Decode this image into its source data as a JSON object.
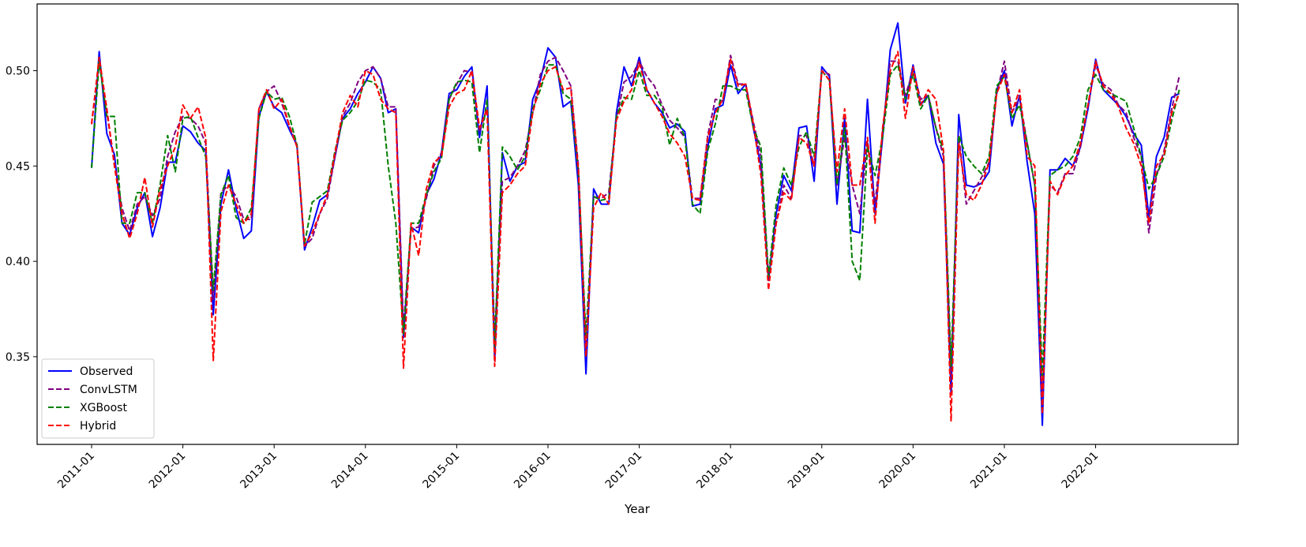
{
  "chart_data": {
    "type": "line",
    "title": "",
    "xlabel": "Year",
    "ylabel": "",
    "ylim": [
      0.304,
      0.535
    ],
    "yticks": [
      "0.35",
      "0.40",
      "0.45",
      "0.50"
    ],
    "ytick_values": [
      0.35,
      0.4,
      0.45,
      0.5
    ],
    "xticks": [
      "2011-01",
      "2012-01",
      "2013-01",
      "2014-01",
      "2015-01",
      "2016-01",
      "2017-01",
      "2018-01",
      "2019-01",
      "2020-01",
      "2021-01",
      "2022-01"
    ],
    "x_start": "2011-01",
    "x_end": "2022-12",
    "x_frequency": "monthly",
    "grid": false,
    "legend_placement": "lower-left",
    "series": [
      {
        "name": "Observed",
        "color": "#0000ff",
        "style": "solid",
        "values": [
          0.449,
          0.51,
          0.467,
          0.456,
          0.42,
          0.414,
          0.428,
          0.436,
          0.413,
          0.428,
          0.452,
          0.452,
          0.471,
          0.468,
          0.462,
          0.458,
          0.372,
          0.43,
          0.448,
          0.428,
          0.412,
          0.416,
          0.476,
          0.489,
          0.481,
          0.478,
          0.469,
          0.461,
          0.406,
          0.418,
          0.432,
          0.435,
          0.455,
          0.475,
          0.48,
          0.488,
          0.494,
          0.502,
          0.496,
          0.478,
          0.48,
          0.36,
          0.418,
          0.415,
          0.435,
          0.443,
          0.457,
          0.488,
          0.49,
          0.497,
          0.502,
          0.465,
          0.492,
          0.348,
          0.457,
          0.442,
          0.45,
          0.452,
          0.485,
          0.495,
          0.512,
          0.507,
          0.481,
          0.484,
          0.44,
          0.341,
          0.438,
          0.43,
          0.43,
          0.478,
          0.502,
          0.492,
          0.507,
          0.49,
          0.483,
          0.478,
          0.47,
          0.472,
          0.468,
          0.429,
          0.43,
          0.46,
          0.48,
          0.482,
          0.503,
          0.488,
          0.493,
          0.47,
          0.45,
          0.39,
          0.425,
          0.445,
          0.437,
          0.47,
          0.471,
          0.442,
          0.502,
          0.497,
          0.43,
          0.475,
          0.416,
          0.415,
          0.485,
          0.425,
          0.465,
          0.511,
          0.525,
          0.483,
          0.503,
          0.482,
          0.487,
          0.462,
          0.451,
          0.33,
          0.477,
          0.44,
          0.439,
          0.441,
          0.447,
          0.49,
          0.5,
          0.471,
          0.487,
          0.452,
          0.425,
          0.314,
          0.448,
          0.448,
          0.454,
          0.45,
          0.46,
          0.48,
          0.506,
          0.49,
          0.486,
          0.482,
          0.476,
          0.467,
          0.461,
          0.423,
          0.455,
          0.465,
          0.486,
          0.488
        ]
      },
      {
        "name": "ConvLSTM",
        "color": "#800080",
        "style": "dashed",
        "values": [
          0.472,
          0.505,
          0.478,
          0.452,
          0.428,
          0.416,
          0.43,
          0.434,
          0.424,
          0.433,
          0.455,
          0.468,
          0.476,
          0.475,
          0.471,
          0.462,
          0.38,
          0.436,
          0.44,
          0.434,
          0.422,
          0.422,
          0.48,
          0.489,
          0.492,
          0.483,
          0.471,
          0.461,
          0.408,
          0.412,
          0.425,
          0.433,
          0.455,
          0.476,
          0.483,
          0.494,
          0.5,
          0.502,
          0.496,
          0.481,
          0.481,
          0.365,
          0.417,
          0.418,
          0.433,
          0.45,
          0.457,
          0.485,
          0.493,
          0.5,
          0.499,
          0.468,
          0.48,
          0.36,
          0.442,
          0.444,
          0.45,
          0.458,
          0.478,
          0.498,
          0.505,
          0.507,
          0.5,
          0.492,
          0.45,
          0.355,
          0.434,
          0.433,
          0.436,
          0.475,
          0.494,
          0.497,
          0.505,
          0.497,
          0.492,
          0.482,
          0.474,
          0.47,
          0.465,
          0.433,
          0.433,
          0.466,
          0.485,
          0.484,
          0.508,
          0.493,
          0.493,
          0.473,
          0.455,
          0.392,
          0.42,
          0.44,
          0.433,
          0.466,
          0.466,
          0.45,
          0.5,
          0.498,
          0.44,
          0.465,
          0.44,
          0.425,
          0.463,
          0.43,
          0.468,
          0.505,
          0.505,
          0.487,
          0.5,
          0.485,
          0.487,
          0.47,
          0.455,
          0.34,
          0.466,
          0.43,
          0.437,
          0.444,
          0.452,
          0.488,
          0.505,
          0.478,
          0.486,
          0.462,
          0.44,
          0.33,
          0.44,
          0.436,
          0.446,
          0.446,
          0.46,
          0.482,
          0.503,
          0.493,
          0.49,
          0.482,
          0.478,
          0.465,
          0.455,
          0.415,
          0.445,
          0.458,
          0.48,
          0.497
        ]
      },
      {
        "name": "XGBoost",
        "color": "#008000",
        "style": "dashed",
        "values": [
          0.449,
          0.505,
          0.476,
          0.476,
          0.42,
          0.42,
          0.436,
          0.436,
          0.42,
          0.44,
          0.466,
          0.447,
          0.475,
          0.476,
          0.465,
          0.455,
          0.385,
          0.435,
          0.445,
          0.423,
          0.42,
          0.428,
          0.475,
          0.489,
          0.485,
          0.486,
          0.476,
          0.461,
          0.409,
          0.431,
          0.434,
          0.437,
          0.458,
          0.474,
          0.478,
          0.484,
          0.495,
          0.494,
          0.49,
          0.45,
          0.42,
          0.362,
          0.42,
          0.42,
          0.435,
          0.447,
          0.454,
          0.485,
          0.494,
          0.495,
          0.494,
          0.457,
          0.485,
          0.355,
          0.46,
          0.455,
          0.448,
          0.455,
          0.48,
          0.49,
          0.503,
          0.503,
          0.488,
          0.485,
          0.447,
          0.36,
          0.434,
          0.432,
          0.433,
          0.476,
          0.486,
          0.485,
          0.5,
          0.487,
          0.487,
          0.481,
          0.461,
          0.475,
          0.465,
          0.43,
          0.425,
          0.458,
          0.472,
          0.492,
          0.492,
          0.49,
          0.49,
          0.47,
          0.46,
          0.392,
          0.43,
          0.449,
          0.44,
          0.46,
          0.468,
          0.455,
          0.5,
          0.495,
          0.44,
          0.47,
          0.4,
          0.39,
          0.46,
          0.445,
          0.465,
          0.498,
          0.503,
          0.485,
          0.498,
          0.48,
          0.487,
          0.47,
          0.458,
          0.345,
          0.466,
          0.455,
          0.45,
          0.446,
          0.455,
          0.492,
          0.497,
          0.475,
          0.482,
          0.462,
          0.44,
          0.34,
          0.445,
          0.448,
          0.45,
          0.455,
          0.465,
          0.49,
          0.498,
          0.49,
          0.488,
          0.486,
          0.484,
          0.47,
          0.455,
          0.438,
          0.445,
          0.455,
          0.474,
          0.49
        ]
      },
      {
        "name": "Hybrid",
        "color": "#ff0000",
        "style": "dashed",
        "values": [
          0.472,
          0.507,
          0.48,
          0.45,
          0.425,
          0.412,
          0.425,
          0.444,
          0.418,
          0.438,
          0.45,
          0.46,
          0.482,
          0.475,
          0.481,
          0.465,
          0.348,
          0.426,
          0.44,
          0.43,
          0.42,
          0.425,
          0.48,
          0.49,
          0.48,
          0.485,
          0.471,
          0.46,
          0.408,
          0.415,
          0.425,
          0.435,
          0.457,
          0.478,
          0.487,
          0.481,
          0.5,
          0.498,
          0.485,
          0.48,
          0.478,
          0.344,
          0.42,
          0.403,
          0.438,
          0.452,
          0.455,
          0.481,
          0.488,
          0.49,
          0.5,
          0.47,
          0.48,
          0.345,
          0.436,
          0.44,
          0.446,
          0.45,
          0.478,
          0.493,
          0.5,
          0.502,
          0.49,
          0.491,
          0.448,
          0.35,
          0.428,
          0.436,
          0.43,
          0.474,
          0.484,
          0.49,
          0.504,
          0.49,
          0.483,
          0.476,
          0.467,
          0.462,
          0.455,
          0.433,
          0.432,
          0.465,
          0.478,
          0.485,
          0.506,
          0.492,
          0.493,
          0.472,
          0.445,
          0.385,
          0.42,
          0.436,
          0.432,
          0.465,
          0.462,
          0.45,
          0.5,
          0.495,
          0.447,
          0.48,
          0.44,
          0.44,
          0.465,
          0.42,
          0.47,
          0.5,
          0.51,
          0.475,
          0.502,
          0.482,
          0.49,
          0.485,
          0.458,
          0.316,
          0.462,
          0.435,
          0.432,
          0.44,
          0.452,
          0.488,
          0.498,
          0.478,
          0.49,
          0.455,
          0.45,
          0.32,
          0.442,
          0.435,
          0.445,
          0.45,
          0.462,
          0.482,
          0.505,
          0.492,
          0.488,
          0.481,
          0.47,
          0.462,
          0.45,
          0.42,
          0.45,
          0.456,
          0.478,
          0.488
        ]
      }
    ]
  }
}
